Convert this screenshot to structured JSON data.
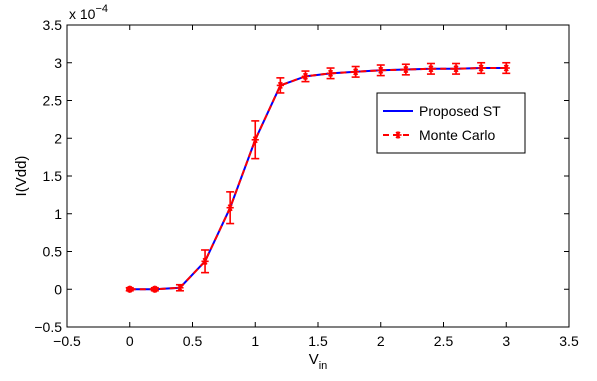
{
  "chart_data": {
    "type": "line",
    "title": "",
    "xlabel": "V",
    "xlabel_subscript": "in",
    "ylabel": "I(Vdd)",
    "y_exponent_label": "x 10",
    "y_exponent_power": "−4",
    "xlim": [
      -0.5,
      3.5
    ],
    "ylim": [
      -0.5,
      3.5
    ],
    "y_scale_multiplier": "1e-4",
    "grid": false,
    "legend_position": "right",
    "x_ticks": [
      -0.5,
      0,
      0.5,
      1,
      1.5,
      2,
      2.5,
      3,
      3.5
    ],
    "x_tick_labels": [
      "−0.5",
      "0",
      "0.5",
      "1",
      "1.5",
      "2",
      "2.5",
      "3",
      "3.5"
    ],
    "y_ticks": [
      -0.5,
      0,
      0.5,
      1,
      1.5,
      2,
      2.5,
      3,
      3.5
    ],
    "y_tick_labels": [
      "−0.5",
      "0",
      "0.5",
      "1",
      "1.5",
      "2",
      "2.5",
      "3",
      "3.5"
    ],
    "x": [
      0,
      0.2,
      0.4,
      0.6,
      0.8,
      1.0,
      1.2,
      1.4,
      1.6,
      1.8,
      2.0,
      2.2,
      2.4,
      2.6,
      2.8,
      3.0
    ],
    "series": [
      {
        "name": "Proposed ST",
        "color": "#0000ff",
        "line_style": "solid",
        "values": [
          0,
          0,
          0.02,
          0.37,
          1.08,
          1.98,
          2.7,
          2.82,
          2.86,
          2.88,
          2.9,
          2.91,
          2.92,
          2.92,
          2.93,
          2.93
        ]
      },
      {
        "name": "Monte Carlo",
        "color": "#ff0000",
        "line_style": "dashed",
        "marker": "asterisk",
        "values": [
          0,
          0,
          0.02,
          0.37,
          1.08,
          1.98,
          2.7,
          2.82,
          2.86,
          2.88,
          2.9,
          2.91,
          2.92,
          2.92,
          2.93,
          2.93
        ],
        "error": [
          0.02,
          0.02,
          0.04,
          0.15,
          0.21,
          0.25,
          0.1,
          0.07,
          0.07,
          0.07,
          0.07,
          0.07,
          0.07,
          0.07,
          0.07,
          0.07
        ]
      }
    ]
  }
}
